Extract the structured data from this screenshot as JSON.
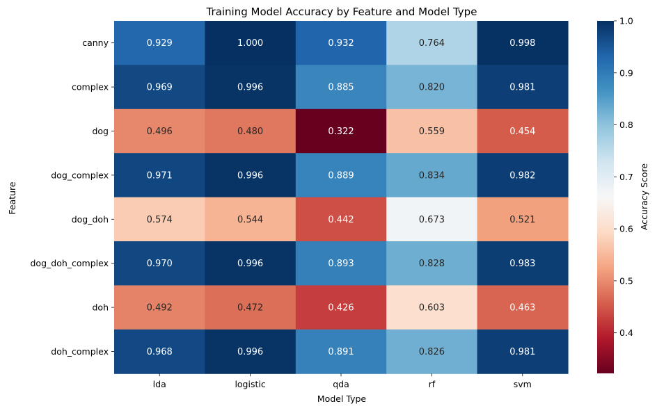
{
  "chart_data": {
    "type": "heatmap",
    "title": "Training Model Accuracy by Feature and Model Type",
    "xlabel": "Model Type",
    "ylabel": "Feature",
    "columns": [
      "lda",
      "logistic",
      "qda",
      "rf",
      "svm"
    ],
    "rows": [
      "canny",
      "complex",
      "dog",
      "dog_complex",
      "dog_doh",
      "dog_doh_complex",
      "doh",
      "doh_complex"
    ],
    "values": [
      [
        0.929,
        1.0,
        0.932,
        0.764,
        0.998
      ],
      [
        0.969,
        0.996,
        0.885,
        0.82,
        0.981
      ],
      [
        0.496,
        0.48,
        0.322,
        0.559,
        0.454
      ],
      [
        0.971,
        0.996,
        0.889,
        0.834,
        0.982
      ],
      [
        0.574,
        0.544,
        0.442,
        0.673,
        0.521
      ],
      [
        0.97,
        0.996,
        0.893,
        0.828,
        0.983
      ],
      [
        0.492,
        0.472,
        0.426,
        0.603,
        0.463
      ],
      [
        0.968,
        0.996,
        0.891,
        0.826,
        0.981
      ]
    ],
    "colormap": "RdBu",
    "vmin": 0.322,
    "vmax": 1.0,
    "colorbar": {
      "label": "Accuracy Score",
      "ticks": [
        0.4,
        0.5,
        0.6,
        0.7,
        0.8,
        0.9,
        1.0
      ]
    }
  }
}
